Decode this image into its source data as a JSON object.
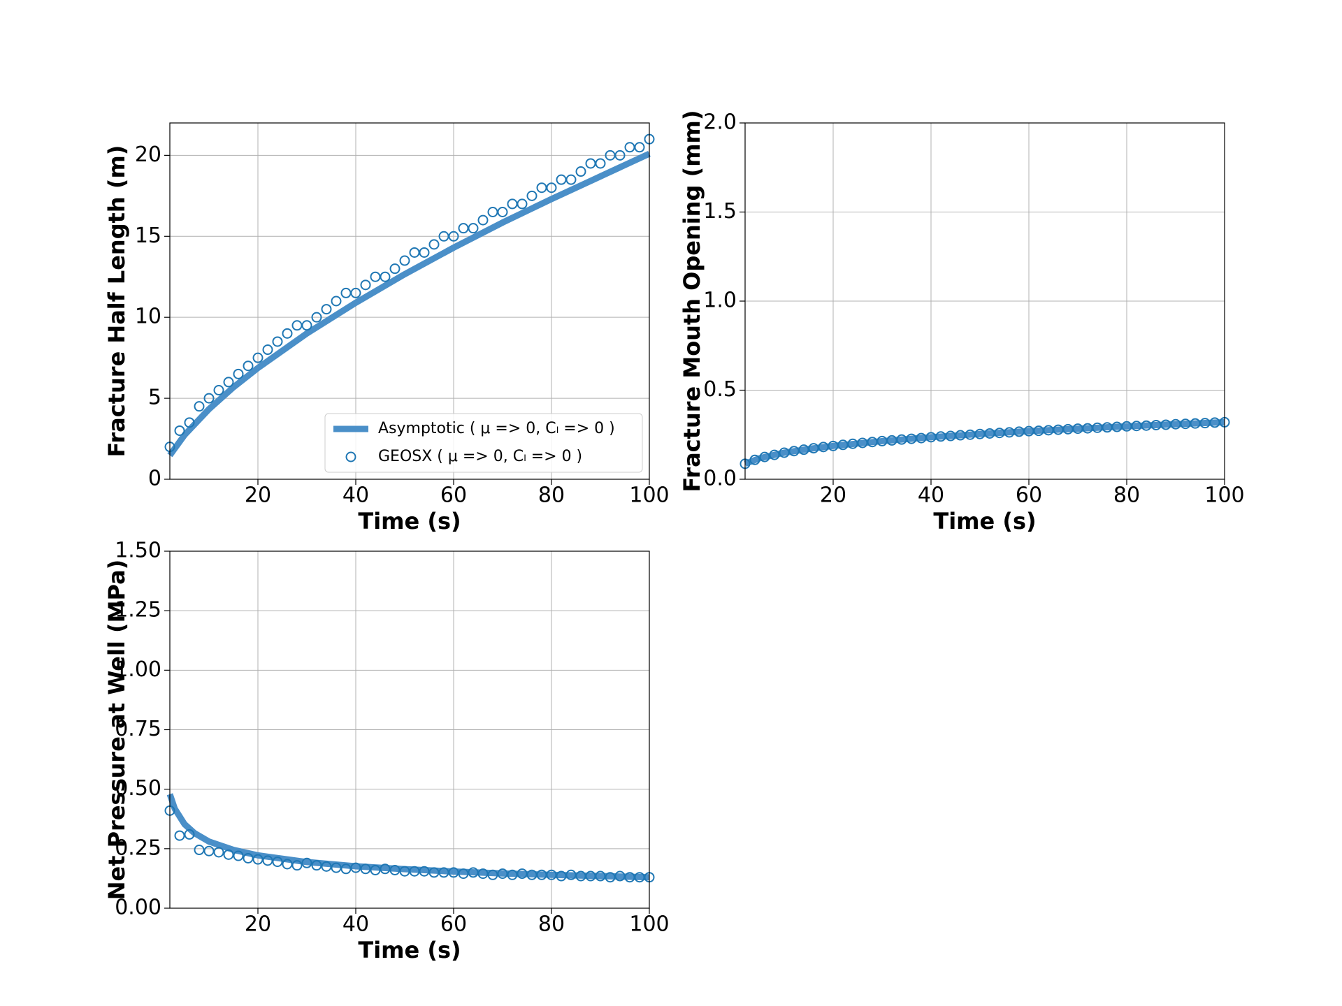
{
  "chart_data": [
    {
      "type": "line",
      "xlabel": "Time (s)",
      "ylabel": "Fracture Half Length (m)",
      "xlim": [
        2,
        100
      ],
      "xticks": [
        20,
        40,
        60,
        80,
        100
      ],
      "ylim": [
        0,
        22
      ],
      "yticks": [
        0,
        5,
        10,
        15,
        20
      ],
      "grid": true,
      "legend": "lower right",
      "series": [
        {
          "name": "Asymptotic ( μ => 0, Cₗ => 0 )",
          "type": "line",
          "color": "#4a8fc8",
          "x": [
            2,
            5,
            10,
            15,
            20,
            30,
            40,
            50,
            60,
            70,
            80,
            90,
            100
          ],
          "values": [
            1.48,
            2.73,
            4.33,
            5.68,
            6.87,
            9.0,
            10.9,
            12.66,
            14.3,
            15.85,
            17.3,
            18.7,
            20.1
          ]
        },
        {
          "name": "GEOSX ( μ => 0, Cₗ => 0 )",
          "type": "scatter",
          "color": "#1f77b4",
          "x": [
            2,
            4,
            6,
            8,
            10,
            12,
            14,
            16,
            18,
            20,
            22,
            24,
            26,
            28,
            30,
            32,
            34,
            36,
            38,
            40,
            42,
            44,
            46,
            48,
            50,
            52,
            54,
            56,
            58,
            60,
            62,
            64,
            66,
            68,
            70,
            72,
            74,
            76,
            78,
            80,
            82,
            84,
            86,
            88,
            90,
            92,
            94,
            96,
            98,
            100
          ],
          "values": [
            2,
            3,
            3.5,
            4.5,
            5,
            5.5,
            6,
            6.5,
            7,
            7.5,
            8,
            8.5,
            9,
            9.5,
            9.5,
            10,
            10.5,
            11,
            11.5,
            11.5,
            12,
            12.5,
            12.5,
            13,
            13.5,
            14,
            14,
            14.5,
            15,
            15,
            15.5,
            15.5,
            16,
            16.5,
            16.5,
            17,
            17,
            17.5,
            18,
            18,
            18.5,
            18.5,
            19,
            19.5,
            19.5,
            20,
            20,
            20.5,
            20.5,
            21
          ]
        }
      ]
    },
    {
      "type": "line",
      "xlabel": "Time (s)",
      "ylabel": "Fracture Mouth Opening (mm)",
      "xlim": [
        2,
        100
      ],
      "xticks": [
        20,
        40,
        60,
        80,
        100
      ],
      "ylim": [
        0,
        2
      ],
      "yticks": [
        {
          "value": 0,
          "label": "0.0"
        },
        0.5,
        {
          "value": 1,
          "label": "1.0"
        },
        1.5,
        {
          "value": 2,
          "label": "2.0"
        }
      ],
      "grid": true,
      "series": [
        {
          "type": "line",
          "color": "#4a8fc8",
          "x": [
            2,
            5,
            10,
            15,
            20,
            30,
            40,
            50,
            60,
            70,
            80,
            90,
            100
          ],
          "values": [
            0.087,
            0.118,
            0.149,
            0.17,
            0.187,
            0.214,
            0.236,
            0.254,
            0.27,
            0.284,
            0.297,
            0.309,
            0.32
          ]
        },
        {
          "type": "scatter",
          "color": "#1f77b4",
          "x": [
            2,
            4,
            6,
            8,
            10,
            12,
            14,
            16,
            18,
            20,
            22,
            24,
            26,
            28,
            30,
            32,
            34,
            36,
            38,
            40,
            42,
            44,
            46,
            48,
            50,
            52,
            54,
            56,
            58,
            60,
            62,
            64,
            66,
            68,
            70,
            72,
            74,
            76,
            78,
            80,
            82,
            84,
            86,
            88,
            90,
            92,
            94,
            96,
            98,
            100
          ],
          "values": [
            0.087,
            0.109,
            0.125,
            0.137,
            0.149,
            0.158,
            0.166,
            0.174,
            0.181,
            0.187,
            0.193,
            0.199,
            0.204,
            0.209,
            0.214,
            0.218,
            0.223,
            0.227,
            0.231,
            0.236,
            0.24,
            0.243,
            0.247,
            0.25,
            0.254,
            0.257,
            0.26,
            0.263,
            0.267,
            0.27,
            0.272,
            0.275,
            0.278,
            0.281,
            0.284,
            0.286,
            0.289,
            0.291,
            0.294,
            0.297,
            0.299,
            0.301,
            0.304,
            0.306,
            0.309,
            0.311,
            0.313,
            0.315,
            0.318,
            0.32
          ]
        }
      ]
    },
    {
      "type": "line",
      "xlabel": "Time (s)",
      "ylabel": "Net Pressure at Well (MPa)",
      "xlim": [
        2,
        100
      ],
      "xticks": [
        20,
        40,
        60,
        80,
        100
      ],
      "ylim": [
        0,
        1.5
      ],
      "yticks": [
        {
          "value": 0,
          "label": "0.00"
        },
        {
          "value": 0.25,
          "label": "0.25"
        },
        {
          "value": 0.5,
          "label": "0.50"
        },
        {
          "value": 0.75,
          "label": "0.75"
        },
        {
          "value": 1,
          "label": "1.00"
        },
        {
          "value": 1.25,
          "label": "1.25"
        },
        {
          "value": 1.5,
          "label": "1.50"
        }
      ],
      "grid": true,
      "series": [
        {
          "type": "line",
          "color": "#4a8fc8",
          "x": [
            2,
            3,
            5,
            7,
            10,
            15,
            20,
            30,
            40,
            50,
            60,
            70,
            80,
            90,
            100
          ],
          "values": [
            0.479,
            0.418,
            0.353,
            0.316,
            0.28,
            0.245,
            0.222,
            0.194,
            0.176,
            0.164,
            0.154,
            0.146,
            0.14,
            0.135,
            0.13
          ]
        },
        {
          "type": "scatter",
          "color": "#1f77b4",
          "x": [
            2,
            4,
            6,
            8,
            10,
            12,
            14,
            16,
            18,
            20,
            22,
            24,
            26,
            28,
            30,
            32,
            34,
            36,
            38,
            40,
            42,
            44,
            46,
            48,
            50,
            52,
            54,
            56,
            58,
            60,
            62,
            64,
            66,
            68,
            70,
            72,
            74,
            76,
            78,
            80,
            82,
            84,
            86,
            88,
            90,
            92,
            94,
            96,
            98,
            100
          ],
          "values": [
            0.41,
            0.305,
            0.31,
            0.245,
            0.24,
            0.235,
            0.225,
            0.22,
            0.21,
            0.205,
            0.2,
            0.195,
            0.185,
            0.18,
            0.19,
            0.18,
            0.175,
            0.17,
            0.165,
            0.17,
            0.165,
            0.16,
            0.165,
            0.16,
            0.155,
            0.155,
            0.155,
            0.15,
            0.15,
            0.15,
            0.145,
            0.15,
            0.145,
            0.14,
            0.145,
            0.14,
            0.145,
            0.14,
            0.14,
            0.14,
            0.135,
            0.14,
            0.135,
            0.135,
            0.135,
            0.13,
            0.135,
            0.13,
            0.13,
            0.13
          ]
        }
      ]
    }
  ]
}
